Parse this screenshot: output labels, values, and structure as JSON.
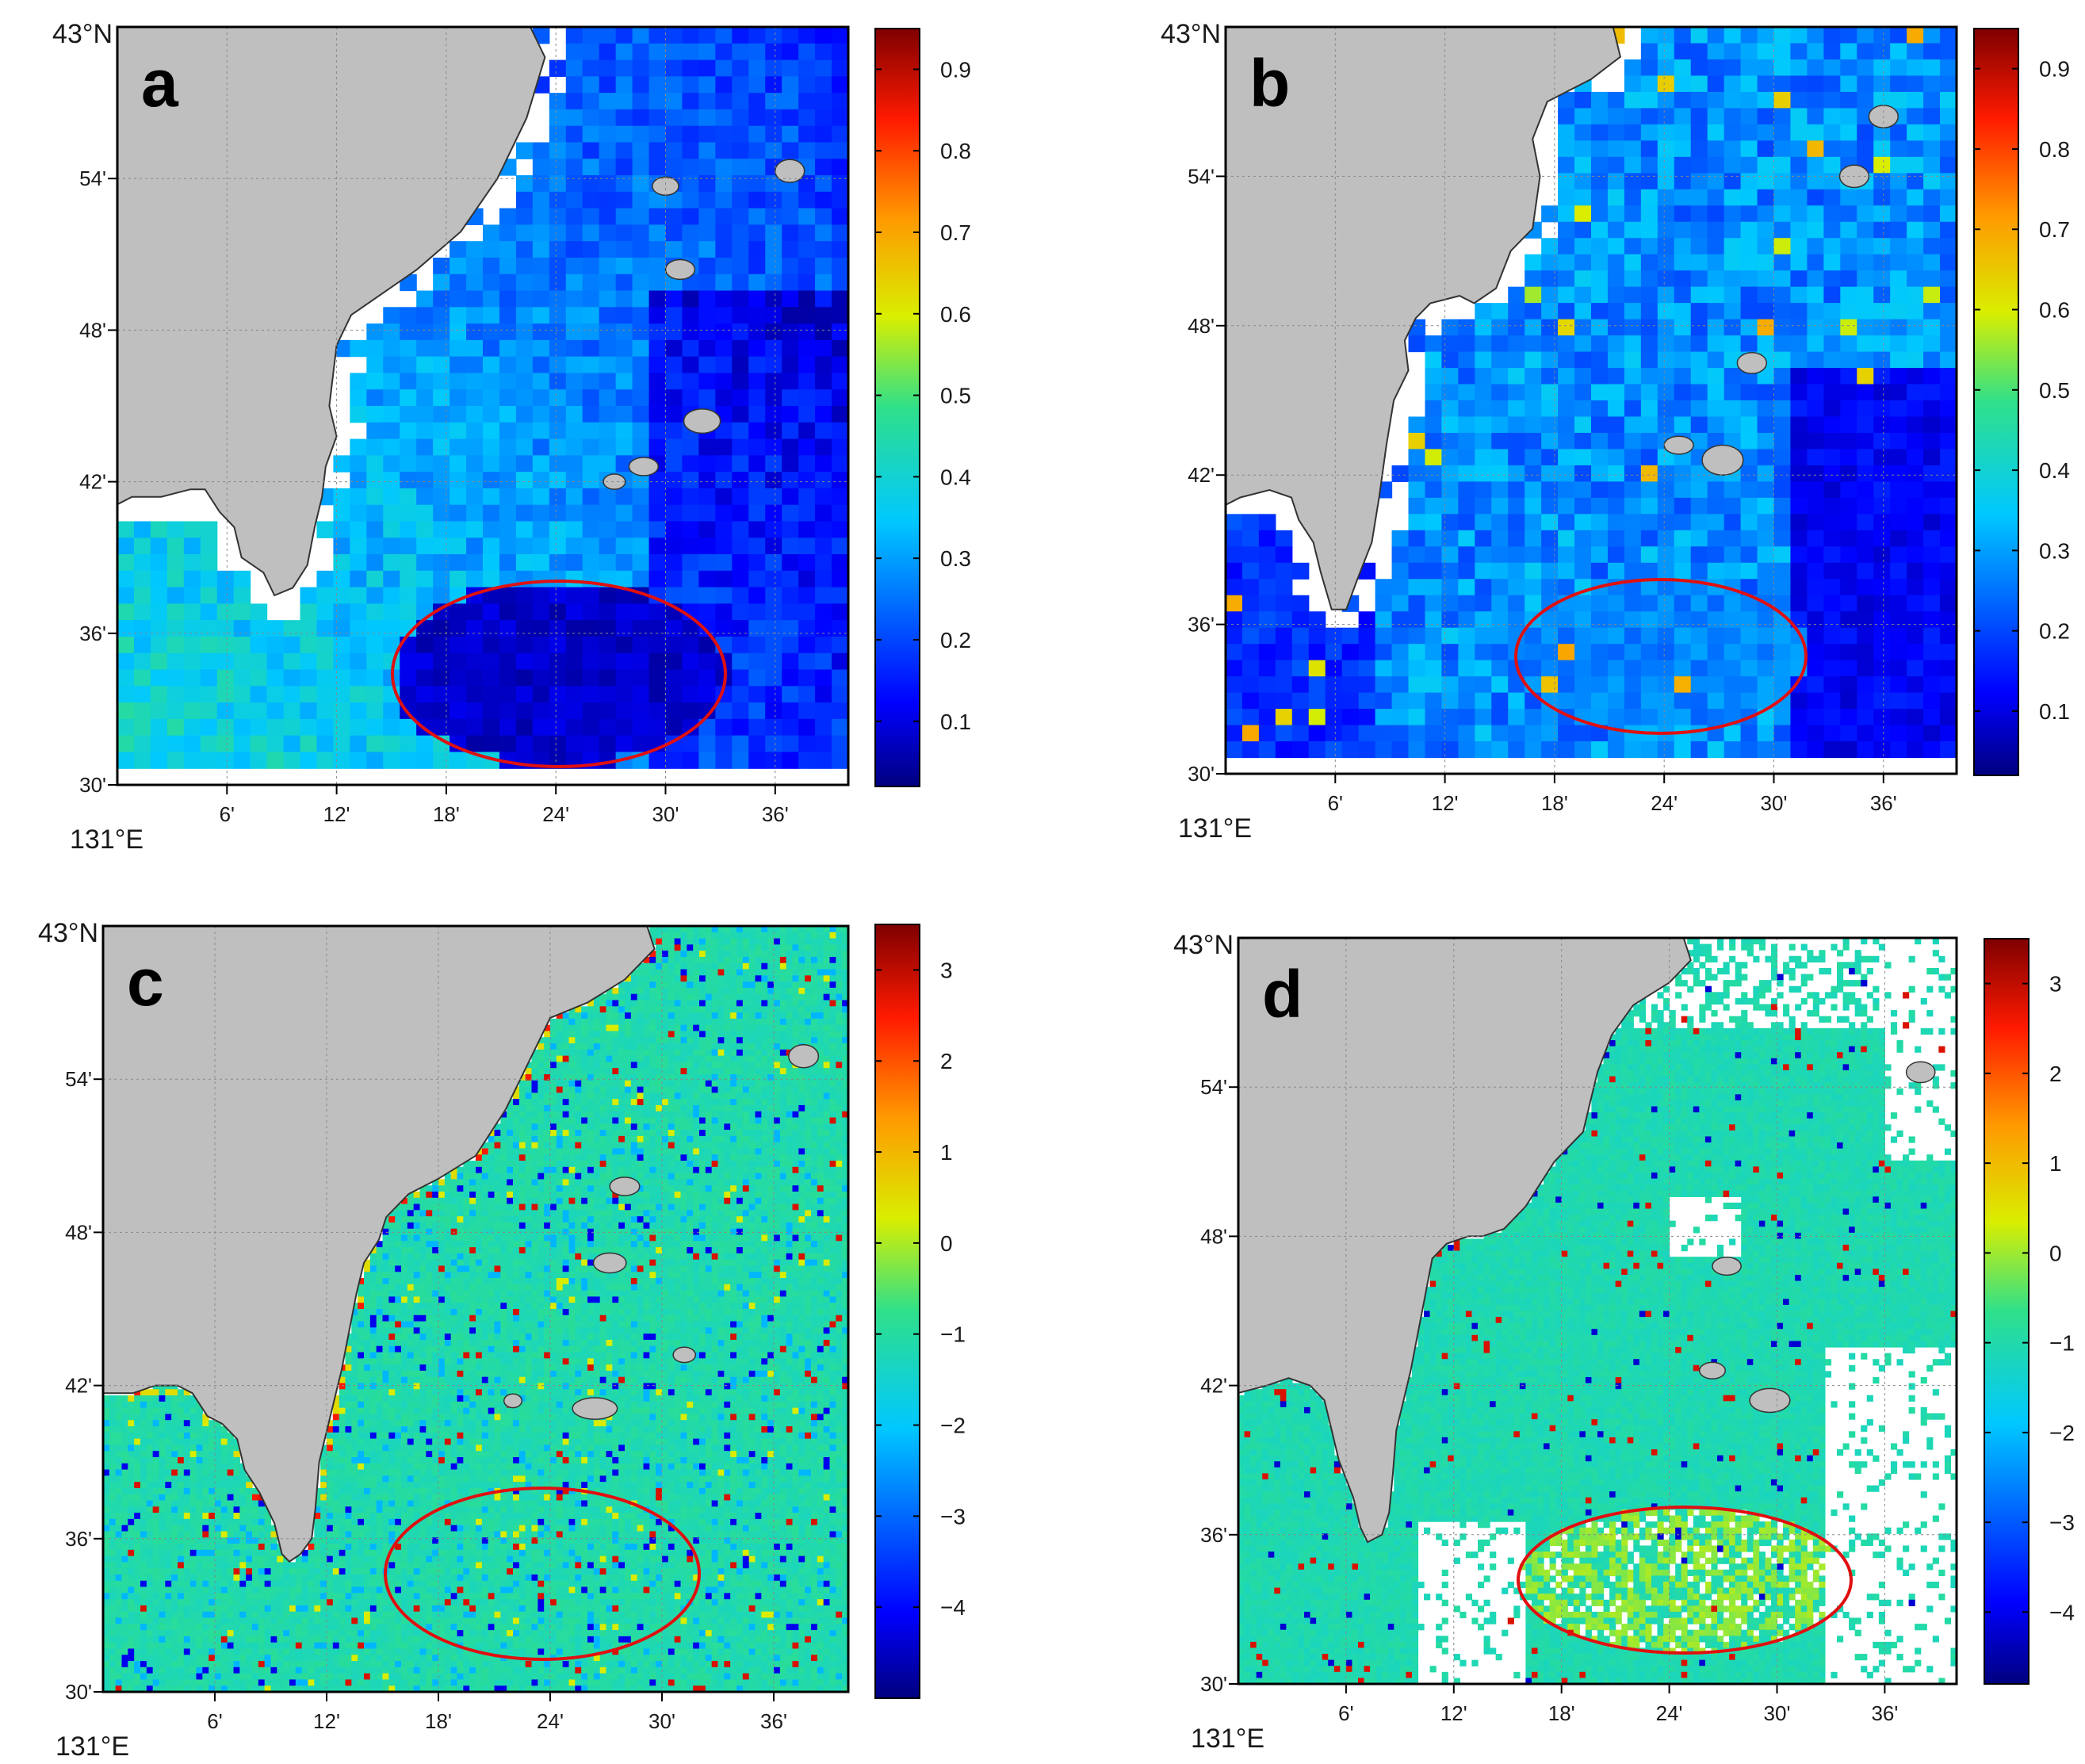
{
  "figure": {
    "panels": [
      {
        "label": "a",
        "colorbar": {
          "min": 0.02,
          "max": 0.95,
          "ticks": [
            0.1,
            0.2,
            0.3,
            0.4,
            0.5,
            0.6,
            0.7,
            0.8,
            0.9
          ],
          "tick_labels": [
            "0.1",
            "0.2",
            "0.3",
            "0.4",
            "0.5",
            "0.6",
            "0.7",
            "0.8",
            "0.9"
          ]
        }
      },
      {
        "label": "b",
        "colorbar": {
          "min": 0.02,
          "max": 0.95,
          "ticks": [
            0.1,
            0.2,
            0.3,
            0.4,
            0.5,
            0.6,
            0.7,
            0.8,
            0.9
          ],
          "tick_labels": [
            "0.1",
            "0.2",
            "0.3",
            "0.4",
            "0.5",
            "0.6",
            "0.7",
            "0.8",
            "0.9"
          ]
        }
      },
      {
        "label": "c",
        "colorbar": {
          "min": -5.0,
          "max": 3.5,
          "ticks": [
            -4,
            -3,
            -2,
            -1,
            0,
            1,
            2,
            3
          ],
          "tick_labels": [
            "−4",
            "−3",
            "−2",
            "−1",
            "0",
            "1",
            "2",
            "3"
          ]
        }
      },
      {
        "label": "d",
        "colorbar": {
          "min": -4.8,
          "max": 3.5,
          "ticks": [
            -4,
            -3,
            -2,
            -1,
            0,
            1,
            2,
            3
          ],
          "tick_labels": [
            "−4",
            "−3",
            "−2",
            "−1",
            "0",
            "1",
            "2",
            "3"
          ]
        }
      }
    ]
  },
  "chart_data": [
    {
      "type": "heatmap",
      "panel": "a",
      "lon_ticks": [
        "6'",
        "12'",
        "18'",
        "24'",
        "30'",
        "36'"
      ],
      "lat_ticks": [
        "30'",
        "36'",
        "42'",
        "48'",
        "54'"
      ],
      "corner_lat": "43°N",
      "corner_lon": "131°E",
      "lon_range_arcmin": [
        0,
        40
      ],
      "lat_range_arcmin": [
        30,
        60
      ],
      "colorbar": "jet",
      "colorbar_range": [
        0.02,
        0.95
      ],
      "dominant_values": "0.1–0.4 (blue to cyan)",
      "highlight_ellipse": {
        "center_lon_arcmin": 24,
        "center_lat_arcmin": 35,
        "values_inside": "≈0.05–0.1 (dark blue)"
      }
    },
    {
      "type": "heatmap",
      "panel": "b",
      "lon_ticks": [
        "6'",
        "12'",
        "18'",
        "24'",
        "30'",
        "36'"
      ],
      "lat_ticks": [
        "30'",
        "36'",
        "42'",
        "48'",
        "54'"
      ],
      "corner_lat": "43°N",
      "corner_lon": "131°E",
      "lon_range_arcmin": [
        0,
        40
      ],
      "lat_range_arcmin": [
        30,
        60
      ],
      "colorbar": "jet",
      "colorbar_range": [
        0.02,
        0.95
      ],
      "dominant_values": "0.1–0.5 (blue to green), sparse 0.6–0.7",
      "highlight_ellipse": {
        "center_lon_arcmin": 24,
        "center_lat_arcmin": 35,
        "values_inside": "≈0.25–0.35 (light blue)"
      }
    },
    {
      "type": "heatmap",
      "panel": "c",
      "lon_ticks": [
        "6'",
        "12'",
        "18'",
        "24'",
        "30'",
        "36'"
      ],
      "lat_ticks": [
        "30'",
        "36'",
        "42'",
        "48'",
        "54'"
      ],
      "corner_lat": "43°N",
      "corner_lon": "131°E",
      "lon_range_arcmin": [
        0,
        40
      ],
      "lat_range_arcmin": [
        30,
        60
      ],
      "colorbar": "jet",
      "colorbar_range": [
        -5.0,
        3.5
      ],
      "dominant_values": "≈ −1 (green) with scattered −4 and +3 speckle",
      "highlight_ellipse": {
        "center_lon_arcmin": 24,
        "center_lat_arcmin": 35
      }
    },
    {
      "type": "heatmap",
      "panel": "d",
      "lon_ticks": [
        "6'",
        "12'",
        "18'",
        "24'",
        "30'",
        "36'"
      ],
      "lat_ticks": [
        "30'",
        "36'",
        "42'",
        "48'",
        "54'"
      ],
      "corner_lat": "43°N",
      "corner_lon": "131°E",
      "lon_range_arcmin": [
        0,
        40
      ],
      "lat_range_arcmin": [
        30,
        60
      ],
      "colorbar": "jet",
      "colorbar_range": [
        -4.8,
        3.5
      ],
      "dominant_values": "≈ −1 (green), ≈ 0 (yellow-green) inside ellipse, masked (white) gaps",
      "highlight_ellipse": {
        "center_lon_arcmin": 24,
        "center_lat_arcmin": 33
      }
    }
  ]
}
